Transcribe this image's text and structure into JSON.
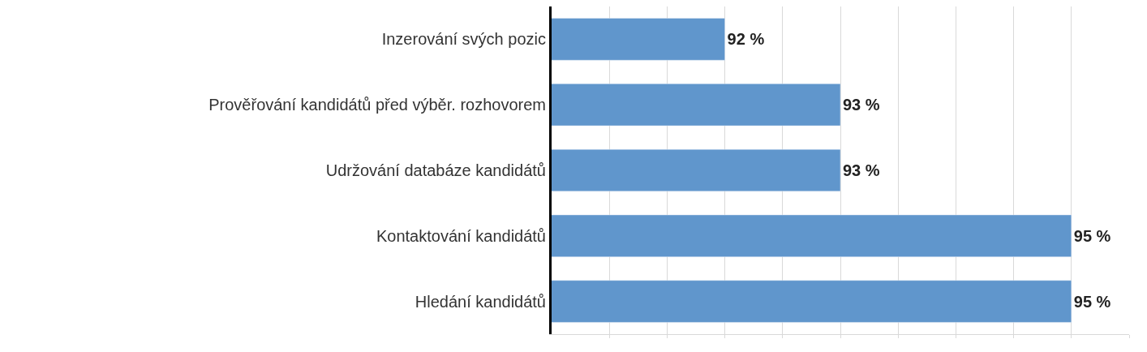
{
  "chart_data": {
    "type": "bar",
    "orientation": "horizontal",
    "categories": [
      "Inzerování svých pozic",
      "Prověřování kandidátů před výběr. rozhovorem",
      "Udržování databáze kandidátů",
      "Kontaktování kandidátů",
      "Hledání kandidátů"
    ],
    "values": [
      92,
      93,
      93,
      95,
      95
    ],
    "value_labels": [
      "92 %",
      "93 %",
      "93 %",
      "95 %",
      "95 %"
    ],
    "color": "#6096cc",
    "xlim": [
      90.5,
      95.5
    ],
    "xticks": [
      {
        "value": 91,
        "label": null
      },
      {
        "value": 91.5,
        "label": null
      },
      {
        "value": 92,
        "label": null
      },
      {
        "value": 92.5,
        "label": null
      },
      {
        "value": 93,
        "label": null
      },
      {
        "value": 93.5,
        "label": null
      },
      {
        "value": 94,
        "label": null
      },
      {
        "value": 94.5,
        "label": null
      },
      {
        "value": 95,
        "label": null
      },
      {
        "value": 95.5,
        "label": null
      }
    ],
    "grid": "x",
    "tick_labels": "y"
  }
}
